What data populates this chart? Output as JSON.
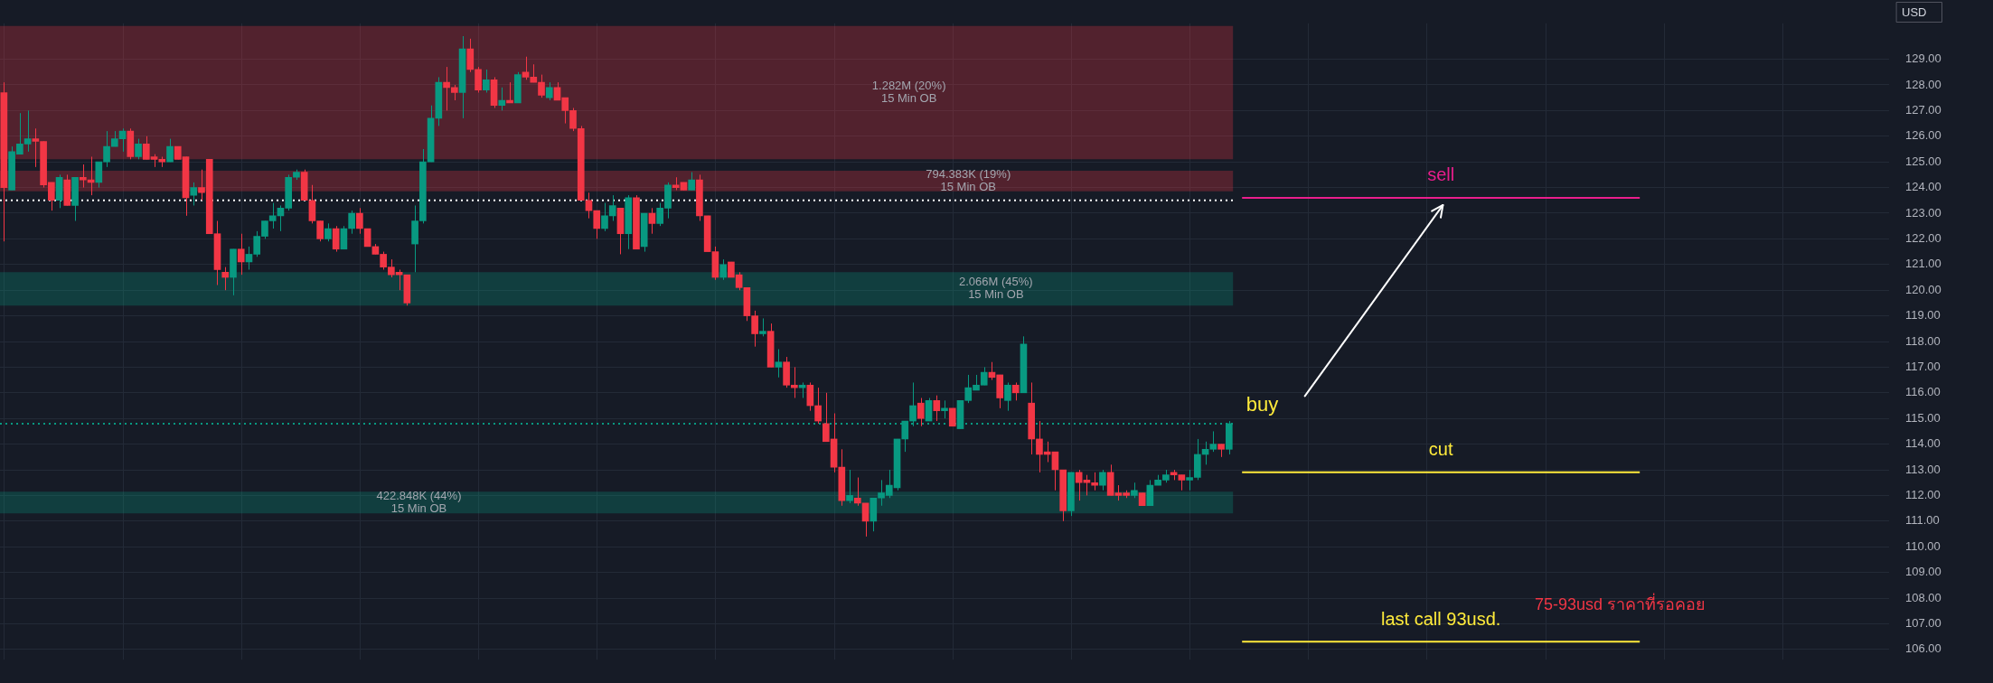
{
  "chart_data": {
    "type": "candlestick",
    "ylabel": "USD",
    "categories": [
      null,
      null,
      null,
      null,
      null,
      null,
      null,
      null,
      null,
      null,
      null,
      null,
      null,
      null,
      null,
      null,
      null,
      null,
      null,
      null,
      null,
      null,
      null,
      null,
      null,
      null,
      null,
      null,
      null,
      null,
      null,
      null,
      null,
      null,
      null,
      null,
      null,
      null,
      null,
      null,
      null,
      null,
      null,
      null,
      null,
      null,
      null,
      null,
      null,
      null,
      null,
      null,
      null,
      null,
      null,
      null,
      null,
      null,
      null,
      null,
      null,
      null,
      null,
      null,
      null,
      null,
      null,
      null,
      null,
      null,
      null,
      null,
      null,
      null,
      null,
      null,
      null,
      null,
      null,
      null,
      null,
      null,
      null,
      null,
      null,
      null,
      null,
      null,
      null,
      null,
      null,
      null,
      null,
      null,
      null,
      null,
      null,
      null,
      null,
      null,
      null,
      null,
      null,
      null,
      null,
      null,
      null,
      null,
      null,
      null,
      null,
      null,
      null,
      null,
      null,
      null,
      null,
      null,
      null,
      null,
      null,
      null,
      null,
      null,
      null,
      null,
      null,
      null,
      null,
      null,
      null,
      null,
      null,
      null,
      null,
      null,
      null,
      null,
      null,
      null,
      null,
      null,
      null,
      null,
      null,
      null,
      null,
      null,
      null,
      null,
      null,
      null,
      null,
      null,
      null,
      null,
      null,
      null,
      null,
      null,
      null,
      null,
      null,
      null,
      null,
      null,
      null,
      null,
      null,
      null,
      null,
      null,
      null,
      null,
      null,
      null,
      null,
      null,
      null,
      null,
      null,
      null,
      null,
      null,
      null,
      null,
      null,
      null,
      null,
      null,
      null,
      null,
      null,
      null,
      null,
      null,
      null,
      null,
      null,
      null,
      null,
      null,
      null,
      null,
      null,
      null,
      null,
      null,
      null,
      null,
      null,
      null,
      null,
      null,
      null,
      null,
      null,
      null,
      null,
      null,
      null,
      null,
      null,
      null,
      null,
      null,
      null,
      null,
      null,
      null,
      null,
      null,
      null,
      null,
      null,
      null,
      null,
      null,
      null
    ],
    "ohlc": [
      [
        127.7,
        128.1,
        121.9,
        124.0
      ],
      [
        123.9,
        125.6,
        123.9,
        125.4
      ],
      [
        125.3,
        126.9,
        125.3,
        125.7
      ],
      [
        125.7,
        127.0,
        125.4,
        125.9
      ],
      [
        125.9,
        126.3,
        124.8,
        125.8
      ],
      [
        125.8,
        125.8,
        124.0,
        124.1
      ],
      [
        124.2,
        124.2,
        123.1,
        123.5
      ],
      [
        123.5,
        124.5,
        123.2,
        124.4
      ],
      [
        124.3,
        124.5,
        123.3,
        123.3
      ],
      [
        123.3,
        124.4,
        122.7,
        124.4
      ],
      [
        124.4,
        124.9,
        124.0,
        124.3
      ],
      [
        124.3,
        125.2,
        123.7,
        124.2
      ],
      [
        124.2,
        125.0,
        124.0,
        125.0
      ],
      [
        125.0,
        126.2,
        124.8,
        125.6
      ],
      [
        125.6,
        126.2,
        125.6,
        125.9
      ],
      [
        125.9,
        126.3,
        125.4,
        126.2
      ],
      [
        126.2,
        126.3,
        125.1,
        125.2
      ],
      [
        125.2,
        125.9,
        125.1,
        125.7
      ],
      [
        125.7,
        126.0,
        125.1,
        125.1
      ],
      [
        125.2,
        125.3,
        124.8,
        125.1
      ],
      [
        125.1,
        125.2,
        124.8,
        125.0
      ],
      [
        125.0,
        125.9,
        125.0,
        125.6
      ],
      [
        125.6,
        125.6,
        125.1,
        125.1
      ],
      [
        125.2,
        125.2,
        122.9,
        123.6
      ],
      [
        123.7,
        124.2,
        123.3,
        124.0
      ],
      [
        124.0,
        124.7,
        123.5,
        123.8
      ],
      [
        125.1,
        125.1,
        122.2,
        122.2
      ],
      [
        122.2,
        122.7,
        120.2,
        120.8
      ],
      [
        120.7,
        120.9,
        120.0,
        120.5
      ],
      [
        120.5,
        121.6,
        119.8,
        121.6
      ],
      [
        121.6,
        122.2,
        120.6,
        121.1
      ],
      [
        121.1,
        121.7,
        120.8,
        121.4
      ],
      [
        121.4,
        122.3,
        121.3,
        122.1
      ],
      [
        122.1,
        122.7,
        122.0,
        122.7
      ],
      [
        122.7,
        123.4,
        122.4,
        122.9
      ],
      [
        122.9,
        123.3,
        122.3,
        123.2
      ],
      [
        123.2,
        124.5,
        123.1,
        124.4
      ],
      [
        124.4,
        124.7,
        124.3,
        124.6
      ],
      [
        124.6,
        124.7,
        123.5,
        123.5
      ],
      [
        123.5,
        124.1,
        122.6,
        122.7
      ],
      [
        122.7,
        122.7,
        121.9,
        122.0
      ],
      [
        122.0,
        122.6,
        121.9,
        122.4
      ],
      [
        122.4,
        122.5,
        121.5,
        121.6
      ],
      [
        121.6,
        122.5,
        121.6,
        122.4
      ],
      [
        122.4,
        123.1,
        122.2,
        123.0
      ],
      [
        123.0,
        123.2,
        122.2,
        122.4
      ],
      [
        122.4,
        122.4,
        121.7,
        121.7
      ],
      [
        121.7,
        121.8,
        121.4,
        121.4
      ],
      [
        121.4,
        121.5,
        120.8,
        120.9
      ],
      [
        120.9,
        121.2,
        120.5,
        120.6
      ],
      [
        120.7,
        120.8,
        120.0,
        120.6
      ],
      [
        120.6,
        120.6,
        119.4,
        119.5
      ],
      [
        121.8,
        123.3,
        120.7,
        122.7
      ],
      [
        122.7,
        125.5,
        122.6,
        125.0
      ],
      [
        125.0,
        127.2,
        125.0,
        126.7
      ],
      [
        126.7,
        128.3,
        126.4,
        128.1
      ],
      [
        128.1,
        128.7,
        127.0,
        127.9
      ],
      [
        127.9,
        128.0,
        127.4,
        127.7
      ],
      [
        127.7,
        129.9,
        126.7,
        129.4
      ],
      [
        129.4,
        129.8,
        128.5,
        128.6
      ],
      [
        128.6,
        128.7,
        127.7,
        127.8
      ],
      [
        127.8,
        128.6,
        127.7,
        128.2
      ],
      [
        128.2,
        128.3,
        127.1,
        127.2
      ],
      [
        127.2,
        127.9,
        127.0,
        127.4
      ],
      [
        127.4,
        128.1,
        127.3,
        127.3
      ],
      [
        127.3,
        128.5,
        127.3,
        128.4
      ],
      [
        128.5,
        129.1,
        128.2,
        128.3
      ],
      [
        128.3,
        128.8,
        128.1,
        128.1
      ],
      [
        128.1,
        128.4,
        127.5,
        127.6
      ],
      [
        127.5,
        128.1,
        127.4,
        127.9
      ],
      [
        127.9,
        128.1,
        127.4,
        127.4
      ],
      [
        127.5,
        127.5,
        126.5,
        127.0
      ],
      [
        127.0,
        127.1,
        126.2,
        126.3
      ],
      [
        126.3,
        126.4,
        123.5,
        123.5
      ],
      [
        123.5,
        123.8,
        122.8,
        123.1
      ],
      [
        123.1,
        123.1,
        122.0,
        122.4
      ],
      [
        122.4,
        123.4,
        122.3,
        122.9
      ],
      [
        122.9,
        123.7,
        122.7,
        123.3
      ],
      [
        123.2,
        123.2,
        121.4,
        122.2
      ],
      [
        122.2,
        123.7,
        121.6,
        123.6
      ],
      [
        123.6,
        123.7,
        121.6,
        121.6
      ],
      [
        121.7,
        123.0,
        121.5,
        123.0
      ],
      [
        123.0,
        123.2,
        122.2,
        122.6
      ],
      [
        122.6,
        123.4,
        122.5,
        123.2
      ],
      [
        123.2,
        124.2,
        122.8,
        124.1
      ],
      [
        124.1,
        124.4,
        123.9,
        124.0
      ],
      [
        124.2,
        124.2,
        123.9,
        123.9
      ],
      [
        123.9,
        124.6,
        123.9,
        124.3
      ],
      [
        124.3,
        124.5,
        122.7,
        122.9
      ],
      [
        122.9,
        122.9,
        121.5,
        121.5
      ],
      [
        121.5,
        121.7,
        120.4,
        120.5
      ],
      [
        120.5,
        121.2,
        120.4,
        121.0
      ],
      [
        121.1,
        121.1,
        120.5,
        120.5
      ],
      [
        120.6,
        120.7,
        120.0,
        120.1
      ],
      [
        120.1,
        120.1,
        118.8,
        119.0
      ],
      [
        119.0,
        119.2,
        117.8,
        118.3
      ],
      [
        118.3,
        118.9,
        118.2,
        118.4
      ],
      [
        118.4,
        118.7,
        117.0,
        117.0
      ],
      [
        117.0,
        117.7,
        116.6,
        117.2
      ],
      [
        117.2,
        117.4,
        116.2,
        116.3
      ],
      [
        116.3,
        117.0,
        115.8,
        116.2
      ],
      [
        116.2,
        116.4,
        115.8,
        116.3
      ],
      [
        116.3,
        116.4,
        115.3,
        115.5
      ],
      [
        115.5,
        116.2,
        114.8,
        114.9
      ],
      [
        114.8,
        116.0,
        114.1,
        114.1
      ],
      [
        114.2,
        115.2,
        112.9,
        113.1
      ],
      [
        113.1,
        113.8,
        111.6,
        111.8
      ],
      [
        111.8,
        113.0,
        111.7,
        112.0
      ],
      [
        111.9,
        112.7,
        111.6,
        111.7
      ],
      [
        111.7,
        111.7,
        110.4,
        111.0
      ],
      [
        111.0,
        111.9,
        110.6,
        111.9
      ],
      [
        111.9,
        112.6,
        111.6,
        112.1
      ],
      [
        112.0,
        113.0,
        111.9,
        112.4
      ],
      [
        112.3,
        114.2,
        112.2,
        114.2
      ],
      [
        114.2,
        114.9,
        113.7,
        114.9
      ],
      [
        114.9,
        116.4,
        114.7,
        115.5
      ],
      [
        115.6,
        115.8,
        114.7,
        115.0
      ],
      [
        114.9,
        115.8,
        114.9,
        115.7
      ],
      [
        115.7,
        115.9,
        114.9,
        115.3
      ],
      [
        115.3,
        115.7,
        115.0,
        115.4
      ],
      [
        115.4,
        115.4,
        114.7,
        114.7
      ],
      [
        114.6,
        115.7,
        114.6,
        115.7
      ],
      [
        115.7,
        116.7,
        115.6,
        116.2
      ],
      [
        116.1,
        116.7,
        116.1,
        116.3
      ],
      [
        116.3,
        117.0,
        116.3,
        116.8
      ],
      [
        116.8,
        117.2,
        116.5,
        116.6
      ],
      [
        116.7,
        116.7,
        115.4,
        115.8
      ],
      [
        115.7,
        116.4,
        115.3,
        116.3
      ],
      [
        116.3,
        116.4,
        115.7,
        116.0
      ],
      [
        116.0,
        118.2,
        116.0,
        117.9
      ],
      [
        115.6,
        116.4,
        113.6,
        114.2
      ],
      [
        114.2,
        114.9,
        112.9,
        113.6
      ],
      [
        113.7,
        114.1,
        113.3,
        113.6
      ],
      [
        113.7,
        113.7,
        112.2,
        113.0
      ],
      [
        113.0,
        113.0,
        111.0,
        111.4
      ],
      [
        111.4,
        112.9,
        111.2,
        112.9
      ],
      [
        112.9,
        113.0,
        111.8,
        112.5
      ],
      [
        112.6,
        112.8,
        112.0,
        112.5
      ],
      [
        112.5,
        112.9,
        112.2,
        112.4
      ],
      [
        112.4,
        113.0,
        112.2,
        112.9
      ],
      [
        112.9,
        113.2,
        112.0,
        112.0
      ],
      [
        112.1,
        112.4,
        111.8,
        112.0
      ],
      [
        112.1,
        112.2,
        111.9,
        112.0
      ],
      [
        112.0,
        112.5,
        111.9,
        112.2
      ],
      [
        112.1,
        112.1,
        111.6,
        111.6
      ],
      [
        111.6,
        112.6,
        111.6,
        112.4
      ],
      [
        112.4,
        112.8,
        112.4,
        112.6
      ],
      [
        112.6,
        113.0,
        112.5,
        112.8
      ],
      [
        112.9,
        113.0,
        112.6,
        112.8
      ],
      [
        112.8,
        112.8,
        112.2,
        112.6
      ],
      [
        112.6,
        113.0,
        112.2,
        112.7
      ],
      [
        112.7,
        114.2,
        112.6,
        113.6
      ],
      [
        113.6,
        114.1,
        113.2,
        113.8
      ],
      [
        113.8,
        114.5,
        113.7,
        114.0
      ],
      [
        114.0,
        114.0,
        113.5,
        113.8
      ],
      [
        113.8,
        114.9,
        113.6,
        114.8
      ],
      null,
      null,
      null,
      null,
      null,
      null,
      null,
      null,
      null,
      null,
      null,
      null,
      null,
      null,
      null,
      null,
      null,
      null,
      null,
      null,
      null,
      null,
      null,
      null,
      null,
      null,
      null,
      null,
      null,
      null,
      null,
      null,
      null,
      null,
      null,
      null,
      null,
      null,
      null,
      null,
      null,
      null,
      null,
      null,
      null,
      null,
      null,
      null,
      null,
      null,
      null,
      null,
      null,
      null,
      null,
      null,
      null,
      null,
      null,
      null,
      null,
      null,
      null,
      null,
      null,
      null,
      null,
      null,
      null,
      null,
      null,
      null,
      null,
      null,
      null,
      null,
      null,
      null,
      null,
      null,
      null,
      null,
      null
    ],
    "colors": [
      "#f23645",
      "#089981",
      "#089981",
      "#089981",
      "#f23645",
      "#f23645",
      "#f23645",
      "#089981",
      "#f23645",
      "#089981",
      "#f23645",
      "#f23645",
      "#089981",
      "#089981",
      "#089981",
      "#089981",
      "#f23645",
      "#089981",
      "#f23645",
      "#f23645",
      "#f23645",
      "#089981",
      "#f23645",
      "#f23645",
      "#089981",
      "#f23645",
      "#f23645",
      "#f23645",
      "#f23645",
      "#089981",
      "#f23645",
      "#089981",
      "#089981",
      "#089981",
      "#089981",
      "#089981",
      "#089981",
      "#089981",
      "#f23645",
      "#f23645",
      "#f23645",
      "#089981",
      "#f23645",
      "#089981",
      "#089981",
      "#f23645",
      "#f23645",
      "#f23645",
      "#f23645",
      "#f23645",
      "#f23645",
      "#f23645",
      "#089981",
      "#089981",
      "#089981",
      "#089981",
      "#f23645",
      "#f23645",
      "#089981",
      "#f23645",
      "#f23645",
      "#089981",
      "#f23645",
      "#089981",
      "#f23645",
      "#089981",
      "#f23645",
      "#f23645",
      "#f23645",
      "#089981",
      "#f23645",
      "#f23645",
      "#f23645",
      "#f23645",
      "#f23645",
      "#f23645",
      "#089981",
      "#089981",
      "#f23645",
      "#089981",
      "#f23645",
      "#089981",
      "#f23645",
      "#089981",
      "#089981",
      "#f23645",
      "#f23645",
      "#089981",
      "#f23645",
      "#f23645",
      "#f23645",
      "#089981",
      "#f23645",
      "#f23645",
      "#f23645",
      "#f23645",
      "#089981",
      "#f23645",
      "#089981",
      "#f23645",
      "#f23645",
      "#089981",
      "#f23645",
      "#f23645",
      "#f23645",
      "#f23645",
      "#f23645",
      "#089981",
      "#f23645",
      "#f23645",
      "#089981",
      "#089981",
      "#089981",
      "#089981",
      "#089981",
      "#089981",
      "#f23645",
      "#089981",
      "#f23645",
      "#089981",
      "#f23645",
      "#089981",
      "#089981",
      "#089981",
      "#089981",
      "#f23645",
      "#f23645",
      "#089981",
      "#f23645",
      "#089981",
      "#f23645",
      "#f23645",
      "#f23645",
      "#f23645",
      "#f23645",
      "#089981",
      "#f23645",
      "#f23645",
      "#f23645",
      "#089981",
      "#f23645",
      "#f23645",
      "#f23645",
      "#089981",
      "#f23645",
      "#089981",
      "#089981",
      "#089981",
      "#f23645",
      "#f23645",
      "#089981",
      "#089981",
      "#089981",
      "#089981",
      "#f23645",
      "#089981",
      null,
      null,
      null,
      null,
      null,
      null,
      null,
      null,
      null,
      null,
      null,
      null,
      null,
      null,
      null,
      null,
      null,
      null,
      null,
      null,
      null,
      null,
      null,
      null,
      null,
      null,
      null,
      null,
      null,
      null,
      null,
      null,
      null,
      null,
      null,
      null,
      null,
      null,
      null,
      null,
      null,
      null,
      null,
      null,
      null,
      null,
      null,
      null,
      null,
      null,
      null,
      null,
      null,
      null,
      null,
      null,
      null,
      null,
      null,
      null,
      null,
      null,
      null,
      null,
      null,
      null,
      null,
      null,
      null,
      null,
      null,
      null,
      null,
      null,
      null,
      null,
      null,
      null,
      null,
      null,
      null,
      null,
      null
    ],
    "ylim": [
      105.6,
      130.4
    ],
    "yticks": [
      {
        "value": 106,
        "label": "106.00"
      },
      {
        "value": 107,
        "label": "107.00"
      },
      {
        "value": 108,
        "label": "108.00"
      },
      {
        "value": 109,
        "label": "109.00"
      },
      {
        "value": 110,
        "label": "110.00"
      },
      {
        "value": 111,
        "label": "111.00"
      },
      {
        "value": 112,
        "label": "112.00"
      },
      {
        "value": 113,
        "label": "113.00"
      },
      {
        "value": 114,
        "label": "114.00"
      },
      {
        "value": 115,
        "label": "115.00"
      },
      {
        "value": 116,
        "label": "116.00"
      },
      {
        "value": 117,
        "label": "117.00"
      },
      {
        "value": 118,
        "label": "118.00"
      },
      {
        "value": 119,
        "label": "119.00"
      },
      {
        "value": 120,
        "label": "120.00"
      },
      {
        "value": 121,
        "label": "121.00"
      },
      {
        "value": 122,
        "label": "122.00"
      },
      {
        "value": 123,
        "label": "123.00"
      },
      {
        "value": 124,
        "label": "124.00"
      },
      {
        "value": 125,
        "label": "125.00"
      },
      {
        "value": 126,
        "label": "126.00"
      },
      {
        "value": 127,
        "label": "127.00"
      },
      {
        "value": 128,
        "label": "128.00"
      },
      {
        "value": 129,
        "label": "129.00"
      }
    ],
    "tick_labels": "y",
    "grid": true,
    "legend": false,
    "bands": [
      {
        "axis": "y",
        "from": 125.1,
        "to": 130.3,
        "label": "1.282M (20%)\n15 Min OB",
        "color": "#f23645"
      },
      {
        "axis": "y",
        "from": 123.85,
        "to": 124.65,
        "label": "794.383K (19%)\n15 Min OB",
        "color": "#f23645"
      },
      {
        "axis": "y",
        "from": 119.4,
        "to": 120.7,
        "label": "2.066M (45%)\n15 Min OB",
        "color": "#089981"
      },
      {
        "axis": "y",
        "from": 111.3,
        "to": 112.15,
        "label": "422.848K (44%)\n15 Min OB",
        "color": "#089981"
      }
    ],
    "ref_lines": [
      {
        "axis": "y",
        "value": 123.6,
        "label": "sell",
        "color": "#e91e8c",
        "line_style": "solid"
      },
      {
        "axis": "y",
        "value": 112.9,
        "label": "cut",
        "color": "#ffeb3b",
        "line_style": "solid"
      },
      {
        "axis": "y",
        "value": 106.3,
        "label": "last call 93usd.",
        "color": "#ffeb3b",
        "line_style": "solid"
      },
      {
        "axis": "y",
        "value": 123.5,
        "color": "#ffffff",
        "line_style": "dotted"
      },
      {
        "axis": "y",
        "value": 114.8,
        "color": "#089981",
        "line_style": "dotted"
      }
    ],
    "annotations": [
      "buy",
      "75-93usd ราคาที่รอคอย"
    ]
  }
}
